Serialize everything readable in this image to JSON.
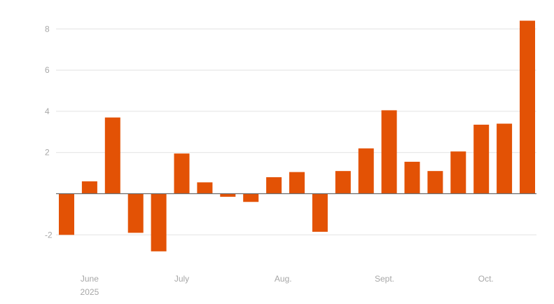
{
  "chart_data": {
    "type": "bar",
    "title": "",
    "xlabel": "",
    "ylabel": "",
    "ylim": [
      -2.9,
      8.5
    ],
    "yticks": [
      -2,
      2,
      4,
      6,
      8
    ],
    "grid": true,
    "bar_color": "#e35205",
    "month_labels": [
      {
        "label": "June",
        "sublabel": "2025",
        "at_bar": 1
      },
      {
        "label": "July",
        "sublabel": "",
        "at_bar": 5
      },
      {
        "label": "Aug.",
        "sublabel": "",
        "at_bar": 9.4
      },
      {
        "label": "Sept.",
        "sublabel": "",
        "at_bar": 13.8
      },
      {
        "label": "Oct.",
        "sublabel": "",
        "at_bar": 18.2
      }
    ],
    "values": [
      -2.0,
      0.6,
      3.7,
      -1.9,
      -2.8,
      1.95,
      0.55,
      -0.15,
      -0.4,
      0.8,
      1.05,
      -1.85,
      1.1,
      2.2,
      4.05,
      1.55,
      1.1,
      2.05,
      3.35,
      3.4,
      8.4
    ]
  }
}
